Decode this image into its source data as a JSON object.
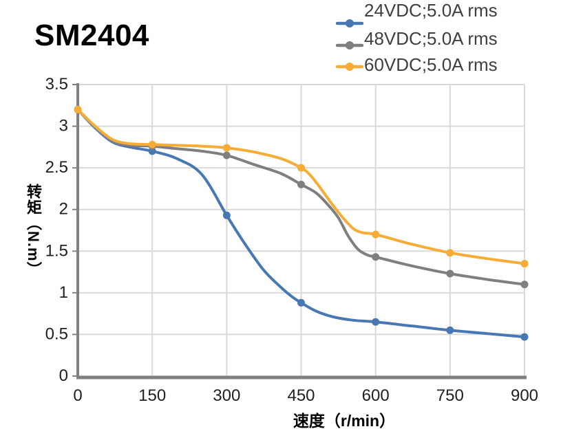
{
  "title": "SM2404",
  "chart_data": {
    "type": "line",
    "title": "SM2404",
    "xlabel": "速度（r/min）",
    "ylabel": "转矩（N.m）",
    "xlim": [
      0,
      900
    ],
    "ylim": [
      0,
      3.5
    ],
    "x_ticks": [
      0,
      150,
      300,
      450,
      600,
      750,
      900
    ],
    "y_ticks": [
      0,
      0.5,
      1,
      1.5,
      2,
      2.5,
      3,
      3.5
    ],
    "grid": true,
    "legend_position": "top-right",
    "x": [
      0,
      150,
      300,
      450,
      600,
      750,
      900
    ],
    "series": [
      {
        "name": "24VDC;5.0A rms",
        "color": "#4778b3",
        "values": [
          3.2,
          2.7,
          1.93,
          0.88,
          0.65,
          0.55,
          0.47
        ],
        "curve": [
          [
            0,
            3.2
          ],
          [
            35,
            2.98
          ],
          [
            70,
            2.81
          ],
          [
            105,
            2.75
          ],
          [
            150,
            2.7
          ],
          [
            200,
            2.61
          ],
          [
            250,
            2.42
          ],
          [
            300,
            1.93
          ],
          [
            333,
            1.62
          ],
          [
            372,
            1.29
          ],
          [
            403,
            1.1
          ],
          [
            430,
            0.96
          ],
          [
            450,
            0.88
          ],
          [
            480,
            0.78
          ],
          [
            515,
            0.71
          ],
          [
            555,
            0.67
          ],
          [
            600,
            0.65
          ],
          [
            675,
            0.6
          ],
          [
            750,
            0.55
          ],
          [
            825,
            0.51
          ],
          [
            900,
            0.47
          ]
        ]
      },
      {
        "name": "48VDC;5.0A rms",
        "color": "#7f7f7f",
        "values": [
          3.2,
          2.76,
          2.65,
          2.3,
          1.43,
          1.23,
          1.1
        ],
        "curve": [
          [
            0,
            3.2
          ],
          [
            35,
            2.99
          ],
          [
            70,
            2.82
          ],
          [
            105,
            2.77
          ],
          [
            150,
            2.76
          ],
          [
            200,
            2.73
          ],
          [
            250,
            2.7
          ],
          [
            300,
            2.65
          ],
          [
            355,
            2.54
          ],
          [
            410,
            2.43
          ],
          [
            450,
            2.3
          ],
          [
            480,
            2.2
          ],
          [
            505,
            2.05
          ],
          [
            525,
            1.9
          ],
          [
            545,
            1.68
          ],
          [
            565,
            1.52
          ],
          [
            585,
            1.45
          ],
          [
            600,
            1.43
          ],
          [
            675,
            1.32
          ],
          [
            750,
            1.23
          ],
          [
            825,
            1.16
          ],
          [
            900,
            1.1
          ]
        ]
      },
      {
        "name": "60VDC;5.0A rms",
        "color": "#f7ac37",
        "values": [
          3.2,
          2.78,
          2.74,
          2.5,
          1.7,
          1.48,
          1.35
        ],
        "curve": [
          [
            0,
            3.2
          ],
          [
            35,
            3.0
          ],
          [
            70,
            2.84
          ],
          [
            105,
            2.79
          ],
          [
            150,
            2.78
          ],
          [
            200,
            2.77
          ],
          [
            250,
            2.76
          ],
          [
            300,
            2.74
          ],
          [
            355,
            2.69
          ],
          [
            410,
            2.61
          ],
          [
            450,
            2.5
          ],
          [
            467,
            2.42
          ],
          [
            486,
            2.28
          ],
          [
            509,
            2.09
          ],
          [
            530,
            1.93
          ],
          [
            555,
            1.77
          ],
          [
            575,
            1.72
          ],
          [
            600,
            1.7
          ],
          [
            675,
            1.58
          ],
          [
            750,
            1.48
          ],
          [
            825,
            1.41
          ],
          [
            900,
            1.35
          ]
        ]
      }
    ]
  },
  "style": {
    "grid_color": "#d9d9d9",
    "y_axis_color": "#818181",
    "x_axis_color": "#7f7f7f",
    "tick_label_color": "#1f1f1f",
    "legend_text_color": "#3f3f3f"
  }
}
